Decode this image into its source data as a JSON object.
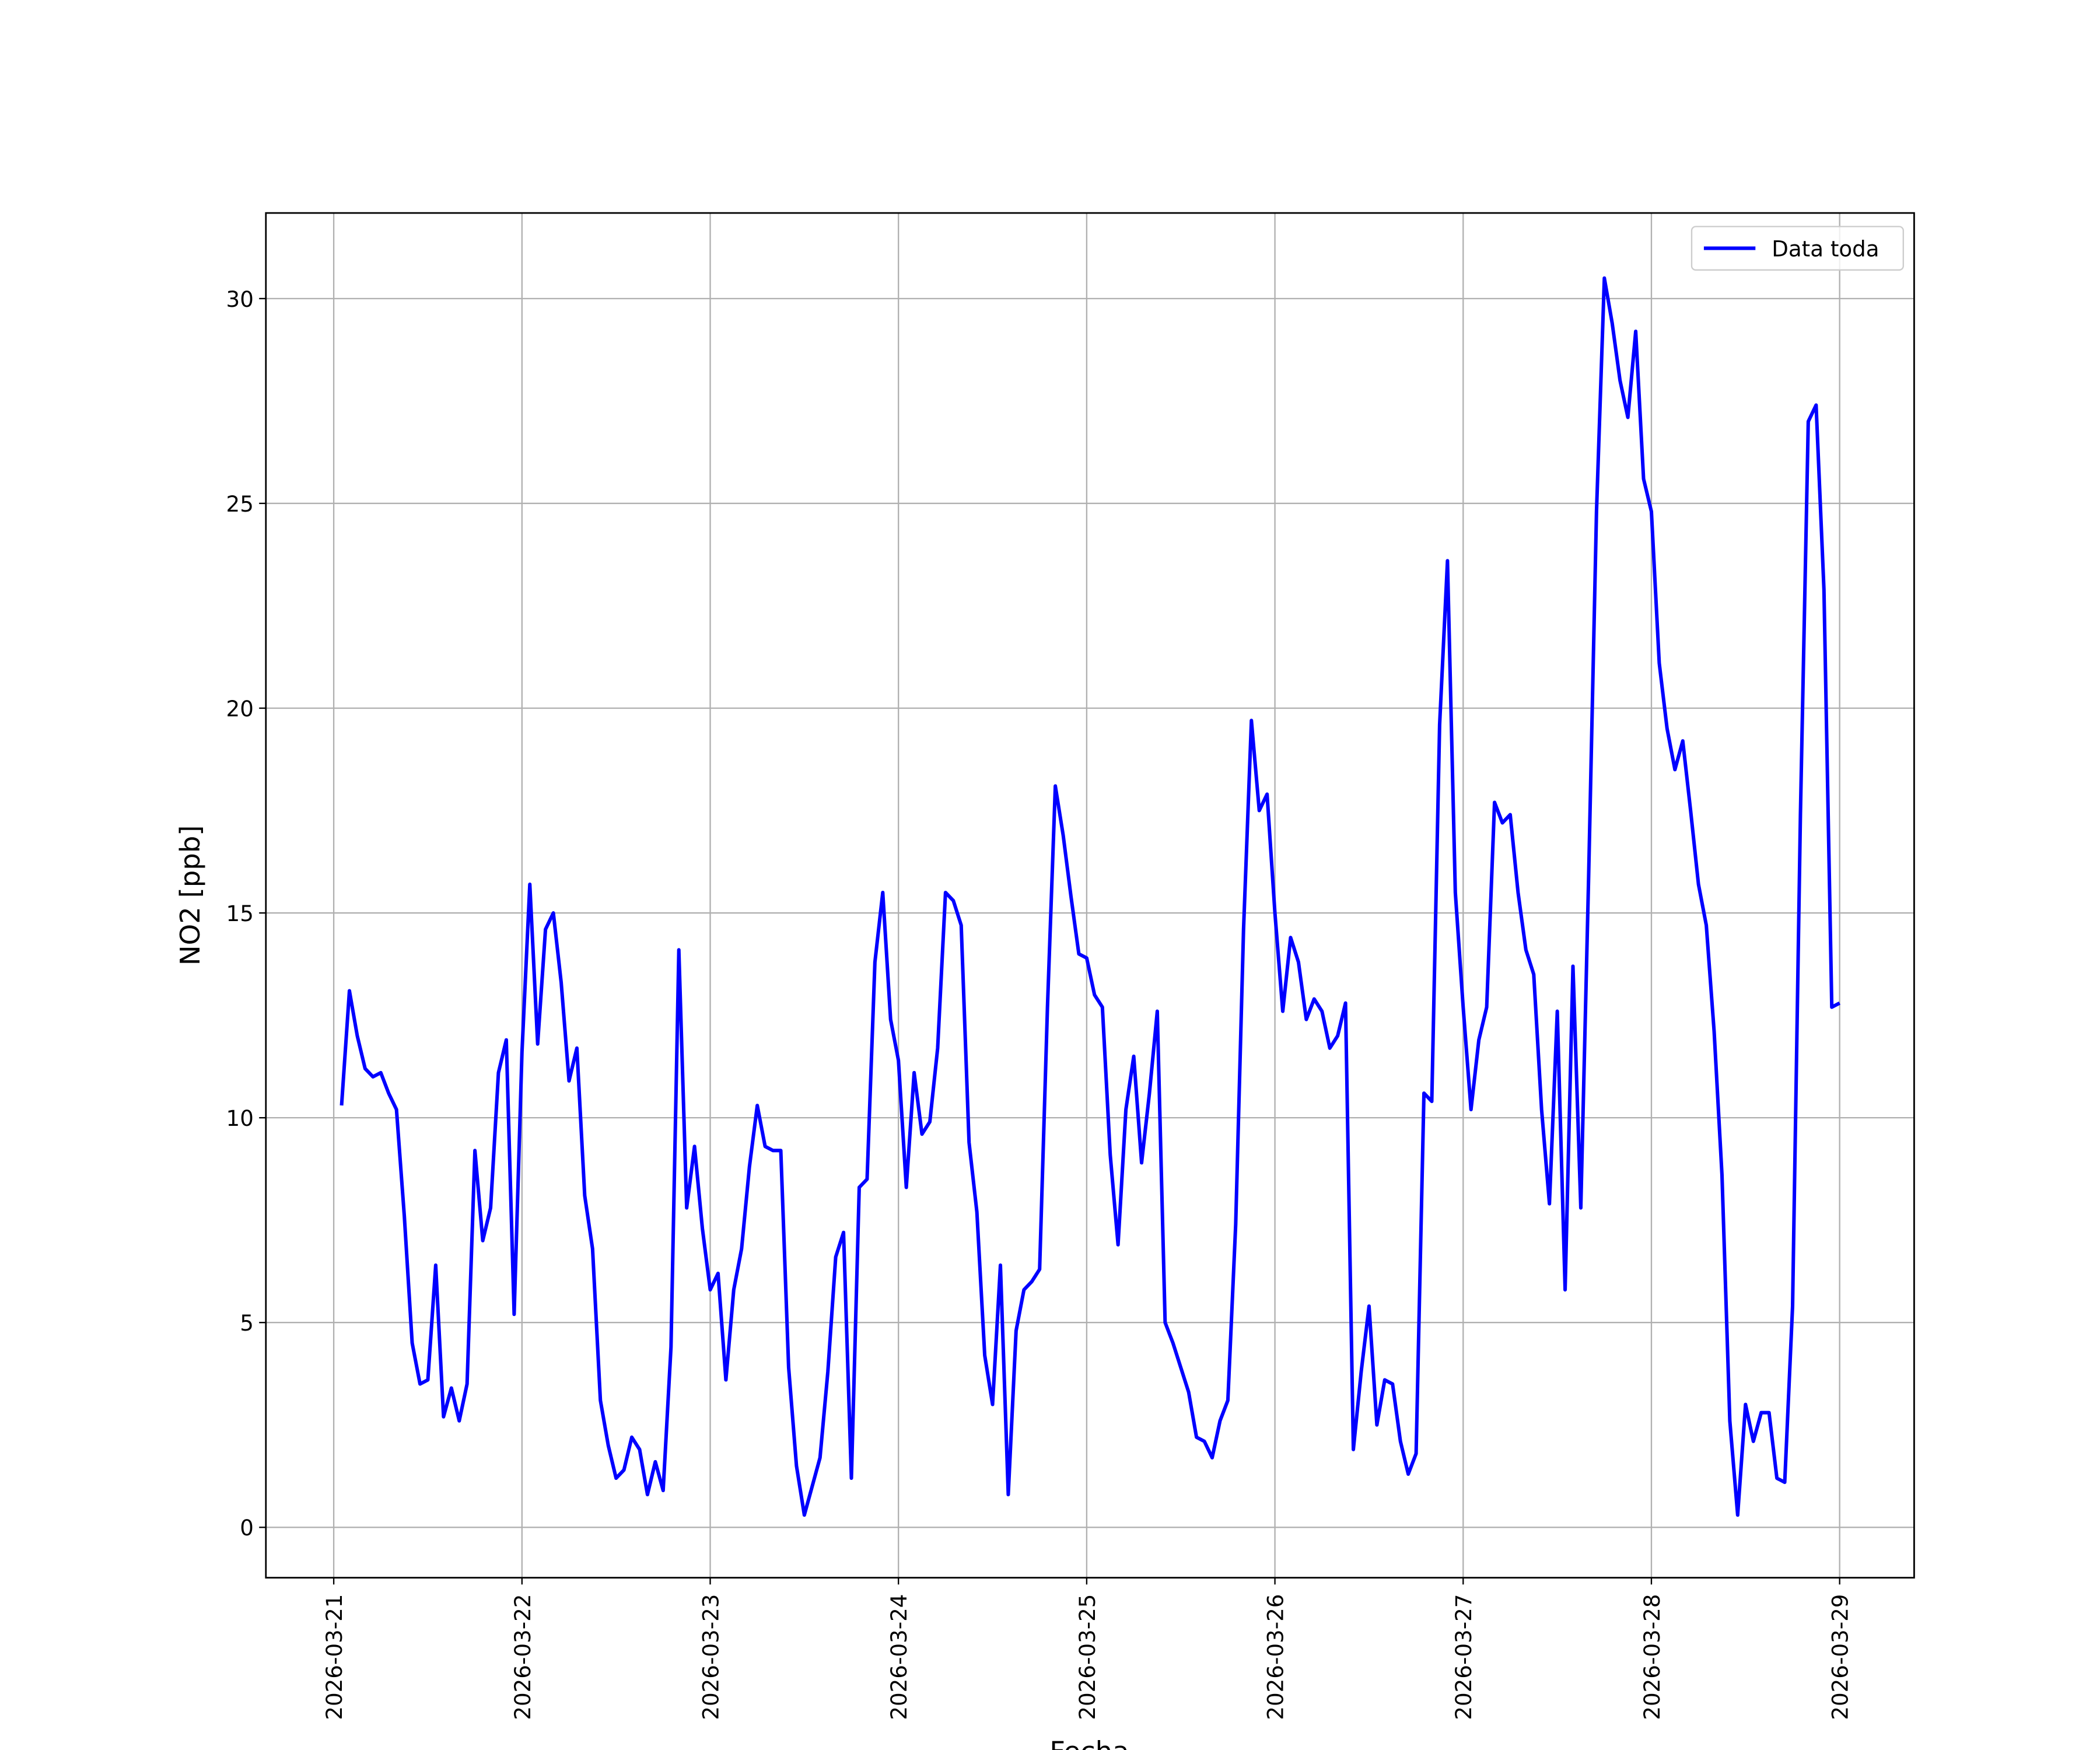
{
  "chart_data": {
    "type": "line",
    "xlabel": "Fecha",
    "ylabel": "NO2 [ppb]",
    "x": [
      "2026-03-21 01:00",
      "2026-03-21 02:00",
      "2026-03-21 03:00",
      "2026-03-21 04:00",
      "2026-03-21 05:00",
      "2026-03-21 06:00",
      "2026-03-21 07:00",
      "2026-03-21 08:00",
      "2026-03-21 09:00",
      "2026-03-21 10:00",
      "2026-03-21 11:00",
      "2026-03-21 12:00",
      "2026-03-21 13:00",
      "2026-03-21 14:00",
      "2026-03-21 15:00",
      "2026-03-21 16:00",
      "2026-03-21 17:00",
      "2026-03-21 18:00",
      "2026-03-21 19:00",
      "2026-03-21 20:00",
      "2026-03-21 21:00",
      "2026-03-21 22:00",
      "2026-03-21 23:00",
      "2026-03-22 00:00",
      "2026-03-22 01:00",
      "2026-03-22 02:00",
      "2026-03-22 03:00",
      "2026-03-22 04:00",
      "2026-03-22 05:00",
      "2026-03-22 06:00",
      "2026-03-22 07:00",
      "2026-03-22 08:00",
      "2026-03-22 09:00",
      "2026-03-22 10:00",
      "2026-03-22 11:00",
      "2026-03-22 12:00",
      "2026-03-22 13:00",
      "2026-03-22 14:00",
      "2026-03-22 15:00",
      "2026-03-22 16:00",
      "2026-03-22 17:00",
      "2026-03-22 18:00",
      "2026-03-22 19:00",
      "2026-03-22 20:00",
      "2026-03-22 21:00",
      "2026-03-22 22:00",
      "2026-03-22 23:00",
      "2026-03-23 00:00",
      "2026-03-23 01:00",
      "2026-03-23 02:00",
      "2026-03-23 03:00",
      "2026-03-23 04:00",
      "2026-03-23 05:00",
      "2026-03-23 06:00",
      "2026-03-23 07:00",
      "2026-03-23 08:00",
      "2026-03-23 09:00",
      "2026-03-23 10:00",
      "2026-03-23 11:00",
      "2026-03-23 12:00",
      "2026-03-23 13:00",
      "2026-03-23 14:00",
      "2026-03-23 15:00",
      "2026-03-23 16:00",
      "2026-03-23 17:00",
      "2026-03-23 18:00",
      "2026-03-23 19:00",
      "2026-03-23 20:00",
      "2026-03-23 21:00",
      "2026-03-23 22:00",
      "2026-03-23 23:00",
      "2026-03-24 00:00",
      "2026-03-24 01:00",
      "2026-03-24 02:00",
      "2026-03-24 03:00",
      "2026-03-24 04:00",
      "2026-03-24 05:00",
      "2026-03-24 06:00",
      "2026-03-24 07:00",
      "2026-03-24 08:00",
      "2026-03-24 09:00",
      "2026-03-24 10:00",
      "2026-03-24 11:00",
      "2026-03-24 12:00",
      "2026-03-24 13:00",
      "2026-03-24 14:00",
      "2026-03-24 15:00",
      "2026-03-24 16:00",
      "2026-03-24 17:00",
      "2026-03-24 18:00",
      "2026-03-24 19:00",
      "2026-03-24 20:00",
      "2026-03-24 21:00",
      "2026-03-24 22:00",
      "2026-03-24 23:00",
      "2026-03-25 00:00",
      "2026-03-25 01:00",
      "2026-03-25 02:00",
      "2026-03-25 03:00",
      "2026-03-25 04:00",
      "2026-03-25 05:00",
      "2026-03-25 06:00",
      "2026-03-25 07:00",
      "2026-03-25 08:00",
      "2026-03-25 09:00",
      "2026-03-25 10:00",
      "2026-03-25 11:00",
      "2026-03-25 12:00",
      "2026-03-25 13:00",
      "2026-03-25 14:00",
      "2026-03-25 15:00",
      "2026-03-25 16:00",
      "2026-03-25 17:00",
      "2026-03-25 18:00",
      "2026-03-25 19:00",
      "2026-03-25 20:00",
      "2026-03-25 21:00",
      "2026-03-25 22:00",
      "2026-03-25 23:00",
      "2026-03-26 00:00",
      "2026-03-26 01:00",
      "2026-03-26 02:00",
      "2026-03-26 03:00",
      "2026-03-26 04:00",
      "2026-03-26 05:00",
      "2026-03-26 06:00",
      "2026-03-26 07:00",
      "2026-03-26 08:00",
      "2026-03-26 09:00",
      "2026-03-26 10:00",
      "2026-03-26 11:00",
      "2026-03-26 12:00",
      "2026-03-26 13:00",
      "2026-03-26 14:00",
      "2026-03-26 15:00",
      "2026-03-26 16:00",
      "2026-03-26 17:00",
      "2026-03-26 18:00",
      "2026-03-26 19:00",
      "2026-03-26 20:00",
      "2026-03-26 21:00",
      "2026-03-26 22:00",
      "2026-03-26 23:00",
      "2026-03-27 00:00",
      "2026-03-27 01:00",
      "2026-03-27 02:00",
      "2026-03-27 03:00",
      "2026-03-27 04:00",
      "2026-03-27 05:00",
      "2026-03-27 06:00",
      "2026-03-27 07:00",
      "2026-03-27 08:00",
      "2026-03-27 09:00",
      "2026-03-27 10:00",
      "2026-03-27 11:00",
      "2026-03-27 12:00",
      "2026-03-27 13:00",
      "2026-03-27 14:00",
      "2026-03-27 15:00",
      "2026-03-27 16:00",
      "2026-03-27 17:00",
      "2026-03-27 18:00",
      "2026-03-27 19:00",
      "2026-03-27 20:00",
      "2026-03-27 21:00",
      "2026-03-27 22:00",
      "2026-03-27 23:00",
      "2026-03-28 00:00",
      "2026-03-28 01:00",
      "2026-03-28 02:00",
      "2026-03-28 03:00",
      "2026-03-28 04:00",
      "2026-03-28 05:00",
      "2026-03-28 06:00",
      "2026-03-28 07:00",
      "2026-03-28 08:00",
      "2026-03-28 09:00",
      "2026-03-28 10:00",
      "2026-03-28 11:00",
      "2026-03-28 12:00",
      "2026-03-28 13:00",
      "2026-03-28 14:00",
      "2026-03-28 15:00",
      "2026-03-28 16:00",
      "2026-03-28 17:00",
      "2026-03-28 18:00",
      "2026-03-28 19:00",
      "2026-03-28 20:00",
      "2026-03-28 21:00",
      "2026-03-28 22:00",
      "2026-03-28 23:00",
      "2026-03-29 00:00"
    ],
    "series": [
      {
        "name": "Data toda",
        "color": "#0000ff",
        "values": [
          10.3,
          13.1,
          12.0,
          11.2,
          11.0,
          11.1,
          10.6,
          10.2,
          7.6,
          4.5,
          3.5,
          3.6,
          6.4,
          2.7,
          3.4,
          2.6,
          3.5,
          9.2,
          7.0,
          7.8,
          11.1,
          11.9,
          5.2,
          11.6,
          15.7,
          11.8,
          14.6,
          15.0,
          13.3,
          10.9,
          11.7,
          8.1,
          6.8,
          3.1,
          2.0,
          1.2,
          1.4,
          2.2,
          1.9,
          0.8,
          1.6,
          0.9,
          4.4,
          14.1,
          7.8,
          9.3,
          7.3,
          5.8,
          6.2,
          3.6,
          5.8,
          6.8,
          8.8,
          10.3,
          9.3,
          9.2,
          9.2,
          3.9,
          1.5,
          0.3,
          1.0,
          1.7,
          3.8,
          6.6,
          7.2,
          1.2,
          8.3,
          8.5,
          13.8,
          15.5,
          12.4,
          11.4,
          8.3,
          11.1,
          9.6,
          9.9,
          11.7,
          15.5,
          15.3,
          14.7,
          9.4,
          7.7,
          4.2,
          3.0,
          6.4,
          0.8,
          4.8,
          5.8,
          6.0,
          6.3,
          12.7,
          18.1,
          16.9,
          15.4,
          14.0,
          13.9,
          13.0,
          12.7,
          9.1,
          6.9,
          10.2,
          11.5,
          8.9,
          10.6,
          12.6,
          5.0,
          4.5,
          3.9,
          3.3,
          2.2,
          2.1,
          1.7,
          2.6,
          3.1,
          7.4,
          14.6,
          19.7,
          17.5,
          17.9,
          15.0,
          12.6,
          14.4,
          13.8,
          12.4,
          12.9,
          12.6,
          11.7,
          12.0,
          12.8,
          1.9,
          3.8,
          5.4,
          2.5,
          3.6,
          3.5,
          2.1,
          1.3,
          1.8,
          10.6,
          10.4,
          19.6,
          23.6,
          15.5,
          12.7,
          10.2,
          11.9,
          12.7,
          17.7,
          17.2,
          17.4,
          15.5,
          14.1,
          13.5,
          10.2,
          7.9,
          12.6,
          5.8,
          13.7,
          7.8,
          15.9,
          24.8,
          30.5,
          29.4,
          28.0,
          27.1,
          29.2,
          25.6,
          24.8,
          21.1,
          19.5,
          18.5,
          19.2,
          17.5,
          15.7,
          14.7,
          12.1,
          8.6,
          2.6,
          0.3,
          3.0,
          2.1,
          2.8,
          2.8,
          1.2,
          1.1,
          5.4,
          17.4,
          27.0,
          27.4,
          22.9,
          12.7,
          12.8
        ]
      }
    ],
    "xlim": [
      "2026-03-20 15:21",
      "2026-03-29 09:30"
    ],
    "xticks": [
      "2026-03-21",
      "2026-03-22",
      "2026-03-23",
      "2026-03-24",
      "2026-03-25",
      "2026-03-26",
      "2026-03-27",
      "2026-03-28",
      "2026-03-29"
    ],
    "ylim": [
      -1.23,
      32.09
    ],
    "yticks": [
      0,
      5,
      10,
      15,
      20,
      25,
      30
    ],
    "grid": true,
    "legend": "upper right"
  }
}
